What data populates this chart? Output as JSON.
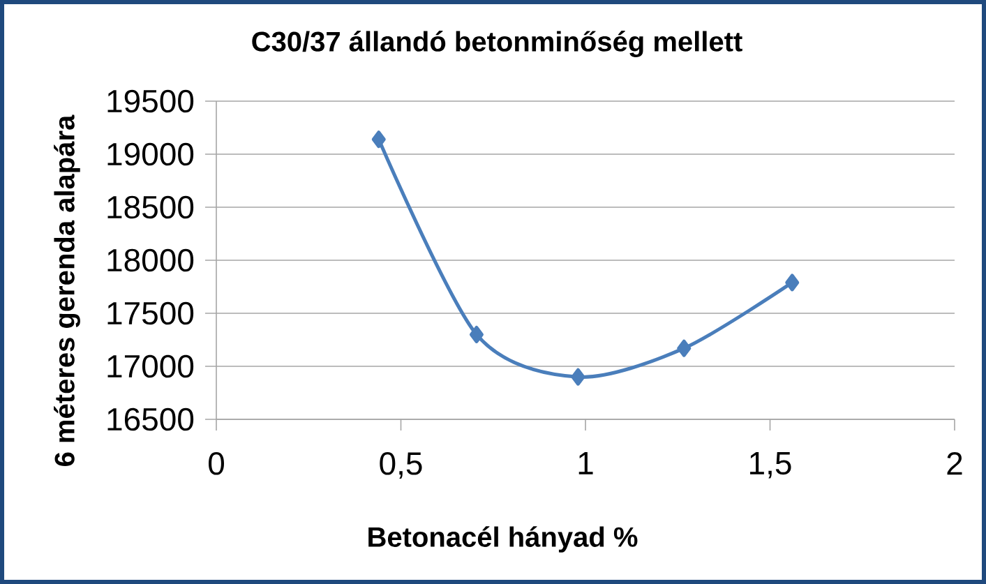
{
  "chart_data": {
    "type": "line",
    "title": "C30/37 állandó betonminőség mellett",
    "xlabel": "Betonacél hányad %",
    "ylabel": "6 méteres gerenda alapára",
    "x": [
      0.44,
      0.705,
      0.98,
      1.267,
      1.56
    ],
    "series": [
      {
        "color": "#4a7ebb",
        "values": [
          19140,
          17300,
          16900,
          17170,
          17790
        ]
      }
    ],
    "xlim": [
      0,
      2
    ],
    "ylim": [
      16500,
      19500
    ],
    "xticks": [
      0,
      {
        "value": 0.5,
        "label": "0,5"
      },
      1,
      {
        "value": 1.5,
        "label": "1,5"
      },
      2
    ],
    "yticks": [
      16500,
      17000,
      17500,
      18000,
      18500,
      19000,
      19500
    ],
    "grid": "y",
    "marker": "diamond",
    "line_style": "solid"
  }
}
